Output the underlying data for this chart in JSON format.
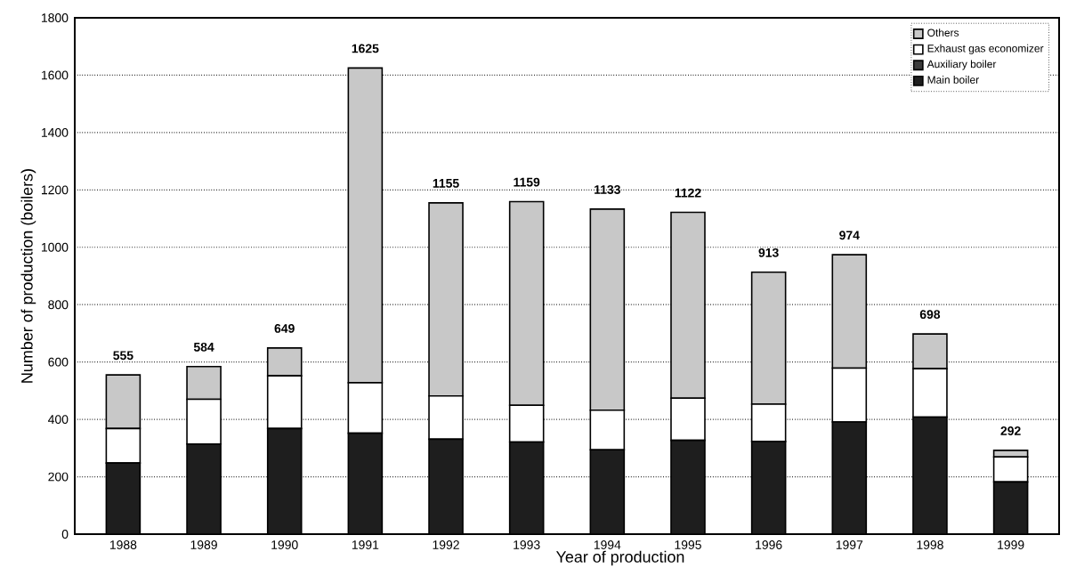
{
  "chart_data": {
    "type": "bar",
    "stacked": true,
    "xlabel": "Year of production",
    "ylabel": "Number of production (boilers)",
    "categories": [
      "1988",
      "1989",
      "1990",
      "1991",
      "1992",
      "1993",
      "1994",
      "1995",
      "1996",
      "1997",
      "1998",
      "1999"
    ],
    "series": [
      {
        "name": "Main boiler",
        "color": "#1e1e1e",
        "values": [
          248,
          314,
          368,
          352,
          331,
          321,
          294,
          327,
          323,
          391,
          408,
          182
        ]
      },
      {
        "name": "Auxiliary boiler",
        "color": "#3a3a3a",
        "values": [
          null,
          null,
          null,
          null,
          null,
          null,
          null,
          null,
          null,
          null,
          null,
          null
        ]
      },
      {
        "name": "Exhaust gas economizer",
        "color": "#ffffff",
        "values": [
          120,
          156,
          184,
          176,
          151,
          128,
          138,
          147,
          130,
          188,
          169,
          87
        ]
      },
      {
        "name": "Others",
        "color": "#c8c8c8",
        "values": [
          187,
          114,
          97,
          1097,
          673,
          710,
          701,
          648,
          460,
          395,
          121,
          23
        ]
      }
    ],
    "totals": [
      "555",
      "584",
      "649",
      "1625",
      "1155",
      "1159",
      "1133",
      "1122",
      "913",
      "974",
      "698",
      "292"
    ],
    "ylim": [
      0,
      1800
    ],
    "yticks": [
      0,
      200,
      400,
      600,
      800,
      1000,
      1200,
      1400,
      1600,
      1800
    ],
    "grid": "y",
    "legend": "top right"
  }
}
